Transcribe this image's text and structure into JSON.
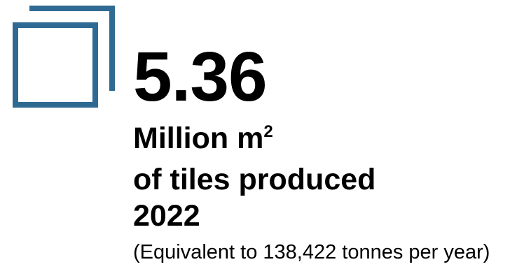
{
  "icon": {
    "name": "overlapping-squares-icon",
    "color": "#2e6a92"
  },
  "stat": {
    "value": "5.36",
    "unit": "Million m",
    "unit_superscript": "2",
    "line2": "of tiles produced",
    "line3": "2022",
    "note": "(Equivalent to 138,422 tonnes per year)"
  }
}
